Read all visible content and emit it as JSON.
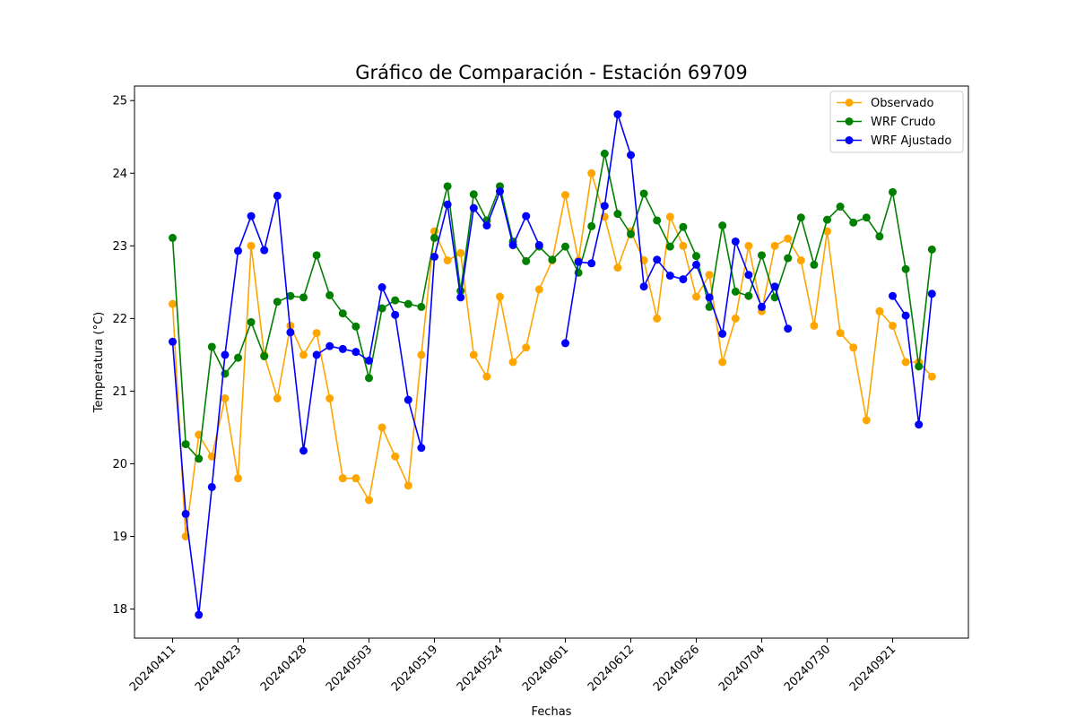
{
  "chart_data": {
    "type": "line",
    "title": "Gráfico de Comparación - Estación 69709",
    "xlabel": "Fechas",
    "ylabel": "Temperatura (°C)",
    "ylim": [
      17.6,
      25.2
    ],
    "yticks": [
      18,
      19,
      20,
      21,
      22,
      23,
      24,
      25
    ],
    "x_tick_labels": [
      "20240411",
      "20240423",
      "20240428",
      "20240503",
      "20240519",
      "20240524",
      "20240601",
      "20240612",
      "20240626",
      "20240704",
      "20240730",
      "20240921"
    ],
    "grid": false,
    "legend_position": "top-right",
    "series": [
      {
        "name": "Observado",
        "color": "#ffa500",
        "values": [
          22.2,
          19.0,
          20.4,
          20.1,
          20.9,
          19.8,
          23.0,
          21.5,
          20.9,
          21.9,
          21.5,
          21.8,
          20.9,
          19.8,
          19.8,
          19.5,
          20.5,
          20.1,
          19.7,
          21.5,
          23.2,
          22.8,
          22.9,
          21.5,
          21.2,
          22.3,
          21.4,
          21.6,
          22.4,
          22.8,
          23.7,
          22.8,
          24.0,
          23.4,
          22.7,
          23.2,
          22.8,
          22.0,
          23.4,
          23.0,
          22.3,
          22.6,
          21.4,
          22.0,
          23.0,
          22.1,
          23.0,
          23.1,
          22.8,
          21.9,
          23.2,
          21.8,
          21.6,
          20.6,
          22.1,
          21.9,
          21.4,
          21.4,
          21.2
        ]
      },
      {
        "name": "WRF Crudo",
        "color": "#008000",
        "values": [
          23.11,
          20.27,
          20.07,
          21.61,
          21.24,
          21.46,
          21.95,
          21.48,
          22.23,
          22.31,
          22.29,
          22.87,
          22.32,
          22.07,
          21.89,
          21.18,
          22.14,
          22.25,
          22.2,
          22.16,
          23.11,
          23.82,
          22.38,
          23.71,
          23.35,
          23.82,
          23.06,
          22.79,
          22.99,
          22.81,
          22.99,
          22.63,
          23.27,
          24.27,
          23.44,
          23.16,
          23.72,
          23.35,
          22.99,
          23.26,
          22.86,
          22.16,
          23.28,
          22.37,
          22.31,
          22.87,
          22.29,
          22.83,
          23.39,
          22.74,
          23.36,
          23.54,
          23.32,
          23.39,
          23.13,
          23.74,
          22.68,
          21.34,
          22.95
        ]
      },
      {
        "name": "WRF Ajustado",
        "color": "#0000ff",
        "values": [
          21.68,
          19.31,
          17.92,
          19.68,
          21.5,
          22.93,
          23.41,
          22.94,
          23.69,
          21.81,
          20.18,
          21.5,
          21.62,
          21.58,
          21.54,
          21.42,
          22.43,
          22.05,
          20.88,
          20.22,
          22.85,
          23.57,
          22.29,
          23.52,
          23.28,
          23.75,
          23.01,
          23.41,
          23.01,
          null,
          21.66,
          22.78,
          22.76,
          23.55,
          24.81,
          24.25,
          22.44,
          22.81,
          22.59,
          22.54,
          22.74,
          22.29,
          21.79,
          23.06,
          22.6,
          22.16,
          22.44,
          21.86,
          null,
          null,
          null,
          null,
          null,
          null,
          null,
          22.31,
          22.04,
          20.54,
          22.34
        ]
      }
    ]
  }
}
